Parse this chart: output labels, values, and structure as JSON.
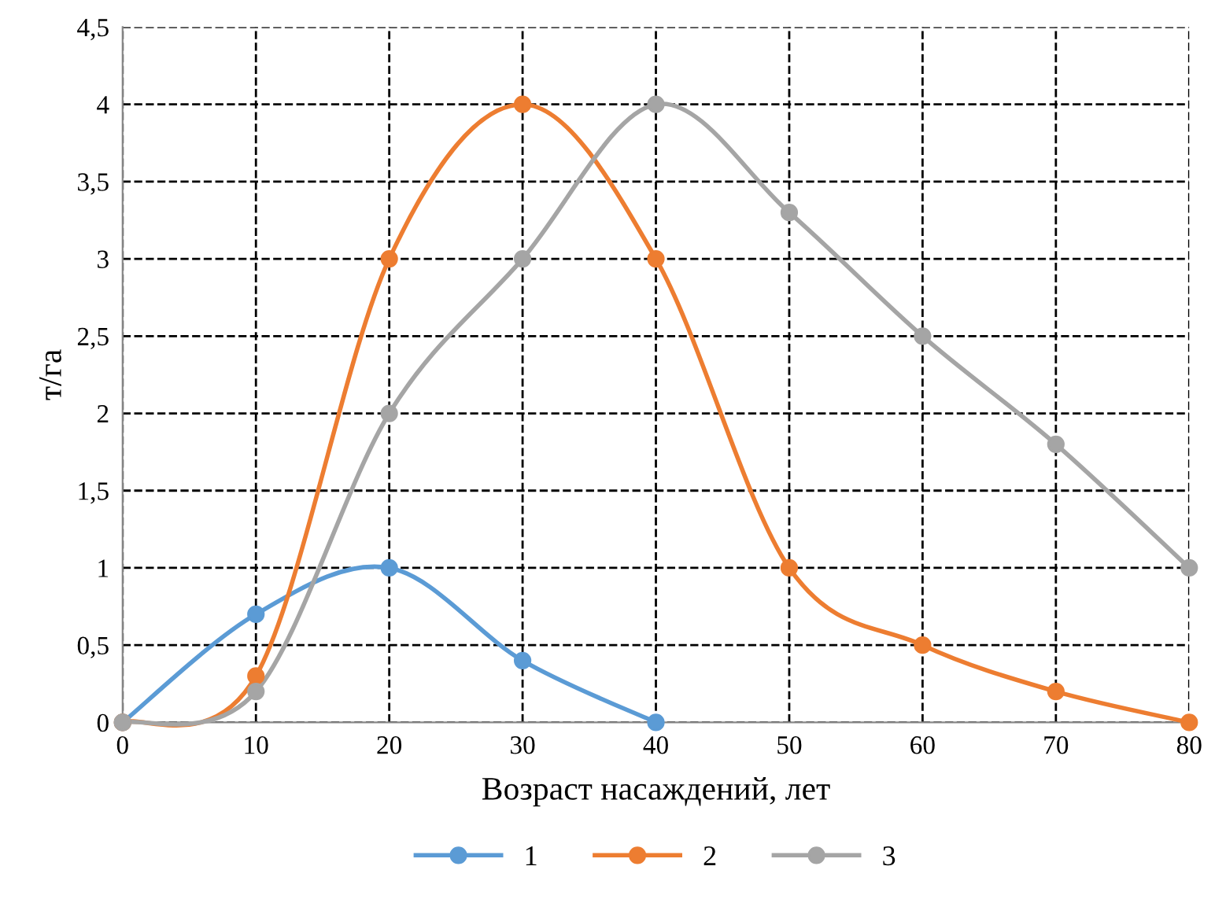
{
  "chart_data": {
    "type": "line",
    "xlabel": "Возраст насаждений, лет",
    "ylabel": "т/га",
    "x": [
      0,
      10,
      20,
      30,
      40,
      50,
      60,
      70,
      80
    ],
    "series": [
      {
        "name": "1",
        "color": "#5b9bd5",
        "values": [
          0,
          0.7,
          1.0,
          0.4,
          0,
          null,
          null,
          null,
          null
        ]
      },
      {
        "name": "2",
        "color": "#ed7d31",
        "values": [
          0,
          0.3,
          3,
          4,
          3,
          1,
          0.5,
          0.2,
          0
        ]
      },
      {
        "name": "3",
        "color": "#a5a5a5",
        "values": [
          0,
          0.2,
          2,
          3,
          4,
          3.3,
          2.5,
          1.8,
          1
        ]
      }
    ],
    "xlim": [
      0,
      80
    ],
    "xticks": [
      0,
      10,
      20,
      30,
      40,
      50,
      60,
      70,
      80
    ],
    "ylim": [
      0,
      4.5
    ],
    "yticks": [
      0,
      {
        "value": 0.5,
        "label": "0,5"
      },
      1,
      {
        "value": 1.5,
        "label": "1,5"
      },
      2,
      {
        "value": 2.5,
        "label": "2,5"
      },
      3,
      {
        "value": 3.5,
        "label": "3,5"
      },
      4,
      {
        "value": 4.5,
        "label": "4,5"
      }
    ],
    "grid": true,
    "legend": "bottom",
    "marker": "circle",
    "line_style": "solid"
  }
}
